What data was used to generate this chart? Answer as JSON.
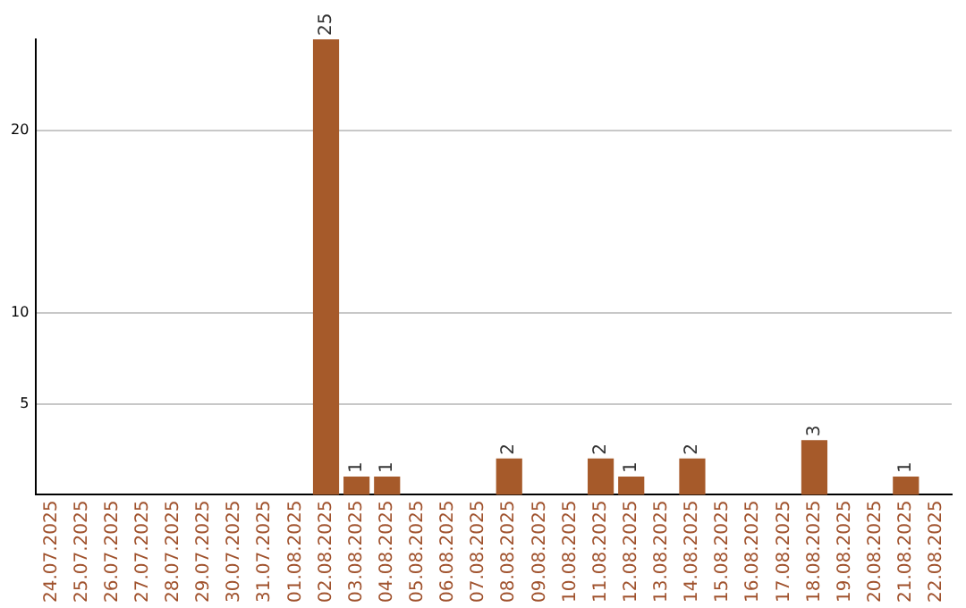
{
  "chart_data": {
    "type": "bar",
    "categories": [
      "24.07.2025",
      "25.07.2025",
      "26.07.2025",
      "27.07.2025",
      "28.07.2025",
      "29.07.2025",
      "30.07.2025",
      "31.07.2025",
      "01.08.2025",
      "02.08.2025",
      "03.08.2025",
      "04.08.2025",
      "05.08.2025",
      "06.08.2025",
      "07.08.2025",
      "08.08.2025",
      "09.08.2025",
      "10.08.2025",
      "11.08.2025",
      "12.08.2025",
      "13.08.2025",
      "14.08.2025",
      "15.08.2025",
      "16.08.2025",
      "17.08.2025",
      "18.08.2025",
      "19.08.2025",
      "20.08.2025",
      "21.08.2025",
      "22.08.2025"
    ],
    "values": [
      0,
      0,
      0,
      0,
      0,
      0,
      0,
      0,
      0,
      25,
      1,
      1,
      0,
      0,
      0,
      2,
      0,
      0,
      2,
      1,
      0,
      2,
      0,
      0,
      0,
      3,
      0,
      0,
      1,
      0
    ],
    "value_labels": [
      null,
      null,
      null,
      null,
      null,
      null,
      null,
      null,
      null,
      "25",
      "1",
      "1",
      null,
      null,
      null,
      "2",
      null,
      null,
      "2",
      "1",
      null,
      "2",
      null,
      null,
      null,
      "3",
      null,
      null,
      "1",
      null
    ],
    "color": "#a65a2a",
    "ylim": [
      0,
      25
    ],
    "yticks": [
      5,
      10,
      20
    ],
    "grid": "y",
    "legend": false
  }
}
